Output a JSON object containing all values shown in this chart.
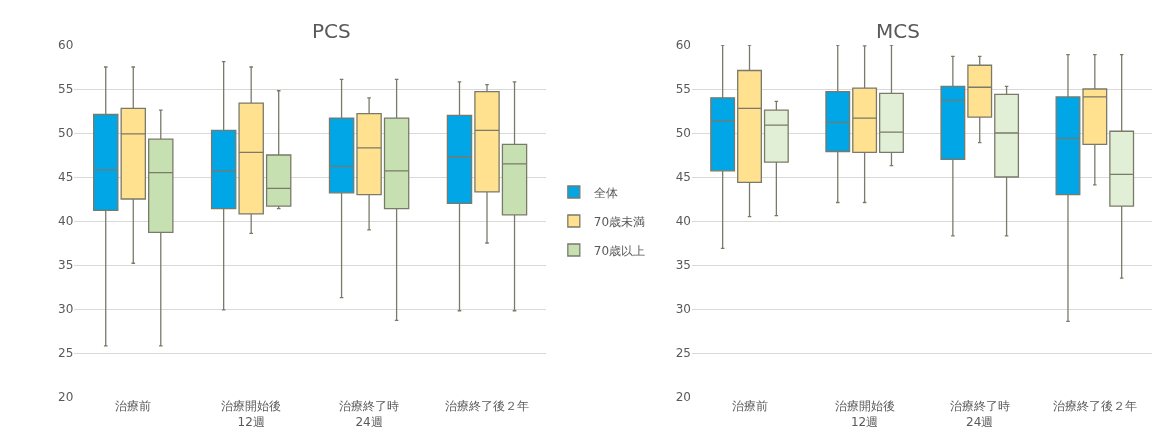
{
  "chart_data": [
    {
      "type": "box",
      "title": "PCS",
      "categories": [
        "治療前",
        "治療開始後\n12週",
        "治療終了時\n24週",
        "治療終了後２年"
      ],
      "ylim": [
        20,
        60
      ],
      "yticks": [
        20,
        25,
        30,
        35,
        40,
        45,
        50,
        55,
        60
      ],
      "grid": "y",
      "legend": "right",
      "series": [
        {
          "name": "全体",
          "color": "#00a6e6",
          "boxes": [
            {
              "low": 25.8,
              "q1": 41.2,
              "median": 45.8,
              "q3": 52.1,
              "high": 57.5
            },
            {
              "low": 29.9,
              "q1": 41.4,
              "median": 45.7,
              "q3": 50.3,
              "high": 58.1
            },
            {
              "low": 31.3,
              "q1": 43.2,
              "median": 46.2,
              "q3": 51.7,
              "high": 56.1
            },
            {
              "low": 29.8,
              "q1": 42.0,
              "median": 47.3,
              "q3": 52.0,
              "high": 55.8
            }
          ]
        },
        {
          "name": "70歳未満",
          "color": "#ffe18f",
          "boxes": [
            {
              "low": 35.2,
              "q1": 42.5,
              "median": 49.9,
              "q3": 52.8,
              "high": 57.5
            },
            {
              "low": 38.6,
              "q1": 40.8,
              "median": 47.8,
              "q3": 53.4,
              "high": 57.5
            },
            {
              "low": 39.0,
              "q1": 43.0,
              "median": 48.3,
              "q3": 52.2,
              "high": 54.0
            },
            {
              "low": 37.5,
              "q1": 43.3,
              "median": 50.3,
              "q3": 54.7,
              "high": 55.5
            }
          ]
        },
        {
          "name": "70歳以上",
          "color": "#c6e0b2",
          "boxes": [
            {
              "low": 25.8,
              "q1": 38.7,
              "median": 45.5,
              "q3": 49.3,
              "high": 52.6
            },
            {
              "low": 41.4,
              "q1": 41.7,
              "median": 43.7,
              "q3": 47.5,
              "high": 54.8
            },
            {
              "low": 28.7,
              "q1": 41.4,
              "median": 45.7,
              "q3": 51.7,
              "high": 56.1
            },
            {
              "low": 29.8,
              "q1": 40.7,
              "median": 46.5,
              "q3": 48.7,
              "high": 55.8
            }
          ]
        }
      ]
    },
    {
      "type": "box",
      "title": "MCS",
      "categories": [
        "治療前",
        "治療開始後\n12週",
        "治療終了時\n24週",
        "治療終了後２年"
      ],
      "ylim": [
        20,
        60
      ],
      "yticks": [
        20,
        25,
        30,
        35,
        40,
        45,
        50,
        55,
        60
      ],
      "grid": "y",
      "series": [
        {
          "color": "#00a6e6",
          "boxes": [
            {
              "low": 36.9,
              "q1": 45.7,
              "median": 51.4,
              "q3": 54.0,
              "high": 60.0
            },
            {
              "low": 42.1,
              "q1": 47.9,
              "median": 51.2,
              "q3": 54.7,
              "high": 60.0
            },
            {
              "low": 38.3,
              "q1": 47.0,
              "median": 53.7,
              "q3": 55.3,
              "high": 58.7
            },
            {
              "low": 28.6,
              "q1": 43.0,
              "median": 49.4,
              "q3": 54.1,
              "high": 58.9
            }
          ]
        },
        {
          "color": "#ffe18f",
          "boxes": [
            {
              "low": 40.5,
              "q1": 44.4,
              "median": 52.8,
              "q3": 57.1,
              "high": 60.0
            },
            {
              "low": 42.1,
              "q1": 47.8,
              "median": 51.7,
              "q3": 55.1,
              "high": 59.9
            },
            {
              "low": 48.9,
              "q1": 51.8,
              "median": 55.2,
              "q3": 57.7,
              "high": 58.7
            },
            {
              "low": 44.1,
              "q1": 48.7,
              "median": 54.1,
              "q3": 55.0,
              "high": 58.9
            }
          ]
        },
        {
          "color": "#e1efd6",
          "boxes": [
            {
              "low": 40.6,
              "q1": 46.7,
              "median": 50.9,
              "q3": 52.6,
              "high": 53.6
            },
            {
              "low": 46.3,
              "q1": 47.8,
              "median": 50.1,
              "q3": 54.5,
              "high": 60.0
            },
            {
              "low": 38.3,
              "q1": 45.0,
              "median": 50.0,
              "q3": 54.4,
              "high": 55.3
            },
            {
              "low": 33.5,
              "q1": 41.7,
              "median": 45.3,
              "q3": 50.2,
              "high": 58.9
            }
          ]
        }
      ]
    }
  ]
}
